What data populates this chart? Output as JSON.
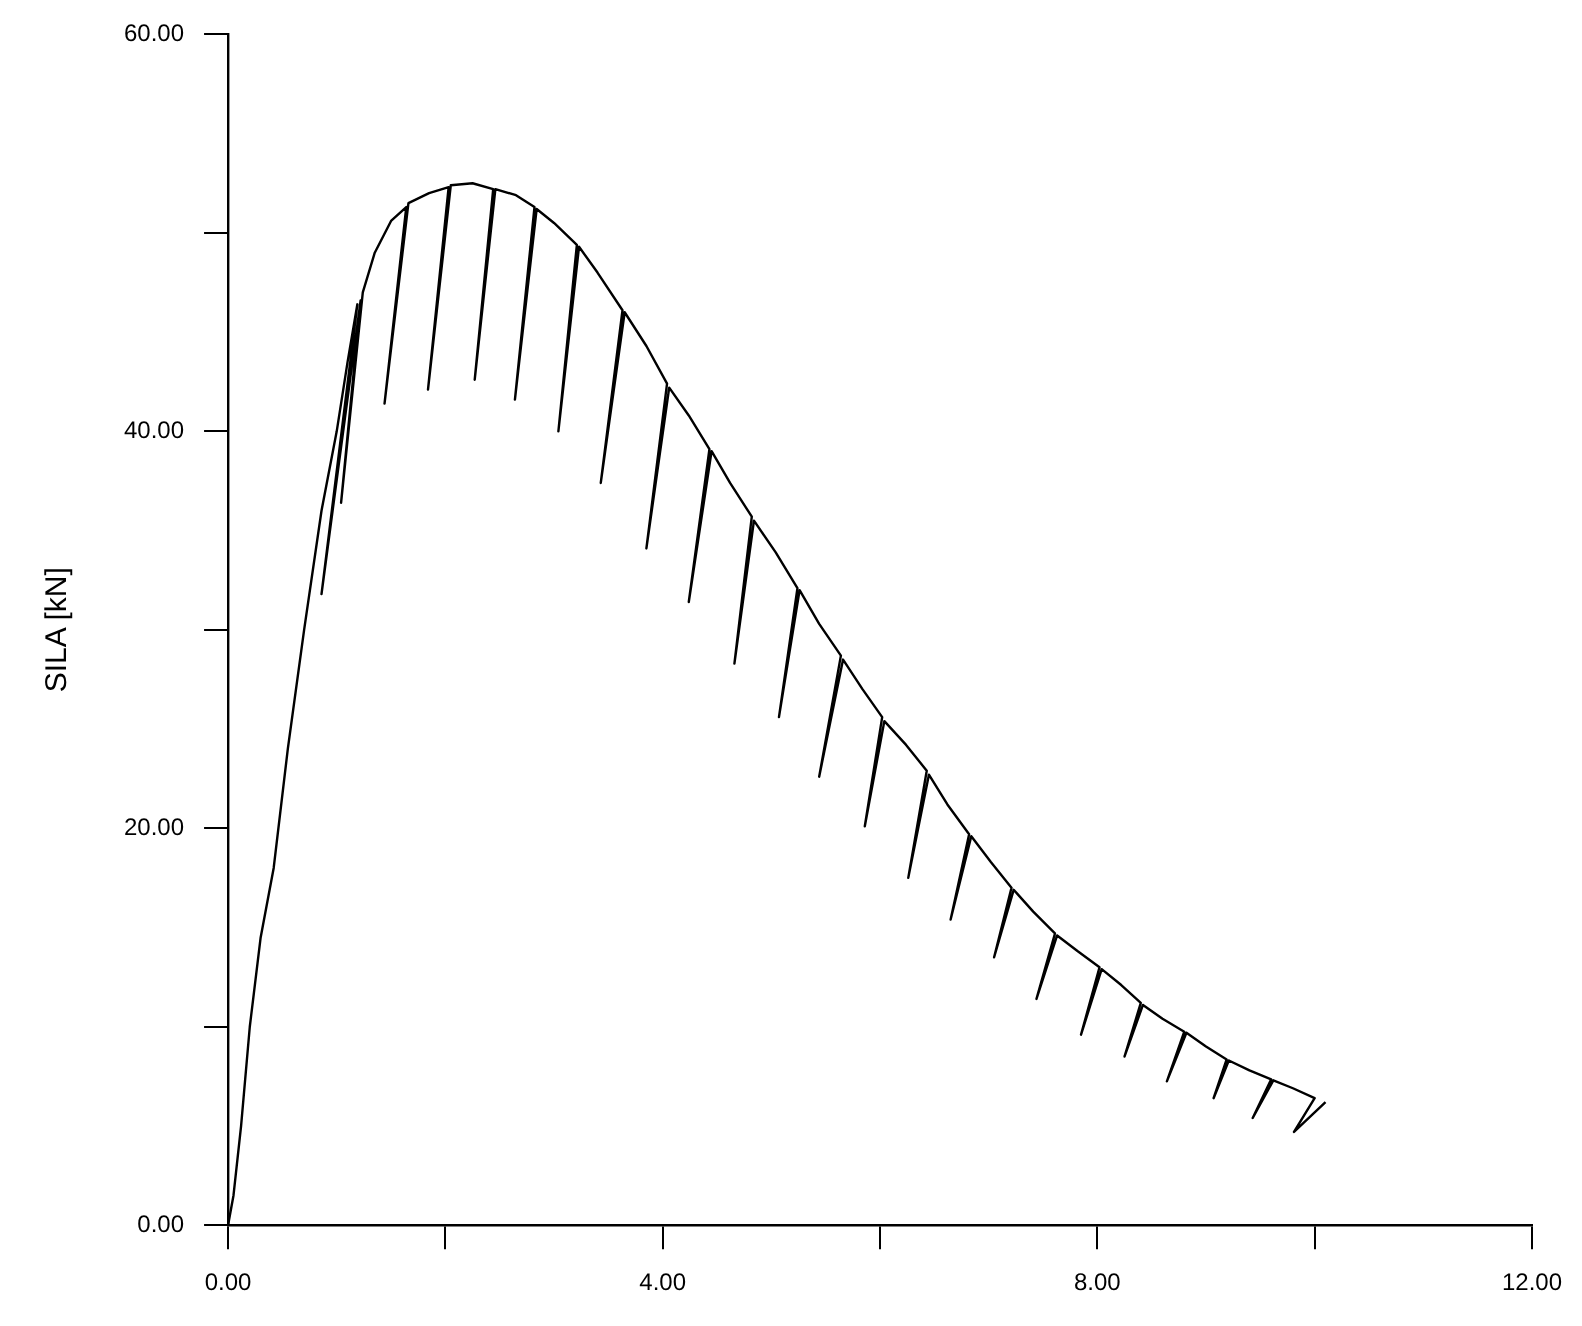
{
  "chart_data": {
    "type": "line",
    "ylabel": "SILA [kN]",
    "grid": false,
    "legend": false,
    "xlim": [
      0,
      12
    ],
    "xticks": [
      {
        "value": 0,
        "label": "0.00"
      },
      {
        "value": 2,
        "label": null
      },
      {
        "value": 4,
        "label": "4.00"
      },
      {
        "value": 6,
        "label": null
      },
      {
        "value": 8,
        "label": "8.00"
      },
      {
        "value": 10,
        "label": null
      },
      {
        "value": 12,
        "label": "12.00"
      }
    ],
    "ylim": [
      0,
      60
    ],
    "yticks": [
      {
        "value": 0,
        "label": "0.00"
      },
      {
        "value": 10,
        "label": null
      },
      {
        "value": 20,
        "label": "20.00"
      },
      {
        "value": 30,
        "label": null
      },
      {
        "value": 40,
        "label": "40.00"
      },
      {
        "value": 50,
        "label": null
      },
      {
        "value": 60,
        "label": "60.00"
      }
    ],
    "series": [
      {
        "color": "#000000",
        "x": [
          0,
          0.05,
          0.12,
          0.2,
          0.3,
          0.42,
          0.55,
          0.7,
          0.86,
          1.0,
          1.1,
          1.19,
          0.86,
          1.22,
          1.04,
          1.24,
          1.35,
          1.5,
          1.64,
          1.44,
          1.66,
          1.85,
          2.03,
          1.84,
          2.05,
          2.25,
          2.44,
          2.27,
          2.46,
          2.65,
          2.82,
          2.64,
          2.84,
          3.0,
          3.21,
          3.04,
          3.23,
          3.4,
          3.63,
          3.43,
          3.65,
          3.85,
          4.04,
          3.85,
          4.06,
          4.24,
          4.43,
          4.24,
          4.45,
          4.62,
          4.82,
          4.66,
          4.84,
          5.04,
          5.24,
          5.07,
          5.26,
          5.44,
          5.64,
          5.44,
          5.66,
          5.84,
          6.02,
          5.86,
          6.04,
          6.24,
          6.43,
          6.26,
          6.45,
          6.62,
          6.82,
          6.65,
          6.84,
          7.02,
          7.21,
          7.05,
          7.23,
          7.41,
          7.61,
          7.44,
          7.63,
          7.82,
          8.02,
          7.85,
          8.04,
          8.22,
          8.4,
          8.25,
          8.42,
          8.6,
          8.8,
          8.64,
          8.82,
          9.0,
          9.19,
          9.07,
          9.21,
          9.4,
          9.6,
          9.43,
          9.62,
          9.8,
          10.0,
          9.81,
          10.1
        ],
        "values": [
          0,
          1.5,
          5,
          10,
          14.5,
          18,
          24,
          30,
          36,
          40,
          43.5,
          46.4,
          31.8,
          46.6,
          36.4,
          47,
          49,
          50.6,
          51.3,
          41.4,
          51.5,
          52,
          52.3,
          42.1,
          52.4,
          52.5,
          52.2,
          42.6,
          52.2,
          51.9,
          51.3,
          41.6,
          51.2,
          50.5,
          49.4,
          40,
          49.3,
          48,
          46.1,
          37.4,
          46,
          44.3,
          42.4,
          34.1,
          42.2,
          40.8,
          39.1,
          31.4,
          39,
          37.4,
          35.7,
          28.3,
          35.5,
          33.9,
          32.1,
          25.6,
          32,
          30.3,
          28.7,
          22.6,
          28.5,
          27,
          25.6,
          20.1,
          25.4,
          24.2,
          22.9,
          17.5,
          22.7,
          21.2,
          19.7,
          15.4,
          19.6,
          18.3,
          17,
          13.5,
          16.9,
          15.8,
          14.7,
          11.4,
          14.6,
          13.8,
          13,
          9.6,
          12.9,
          12.1,
          11.2,
          8.5,
          11.1,
          10.4,
          9.75,
          7.25,
          9.7,
          9,
          8.35,
          6.4,
          8.3,
          7.8,
          7.35,
          5.4,
          7.3,
          6.9,
          6.4,
          4.7,
          6.2
        ]
      }
    ]
  }
}
